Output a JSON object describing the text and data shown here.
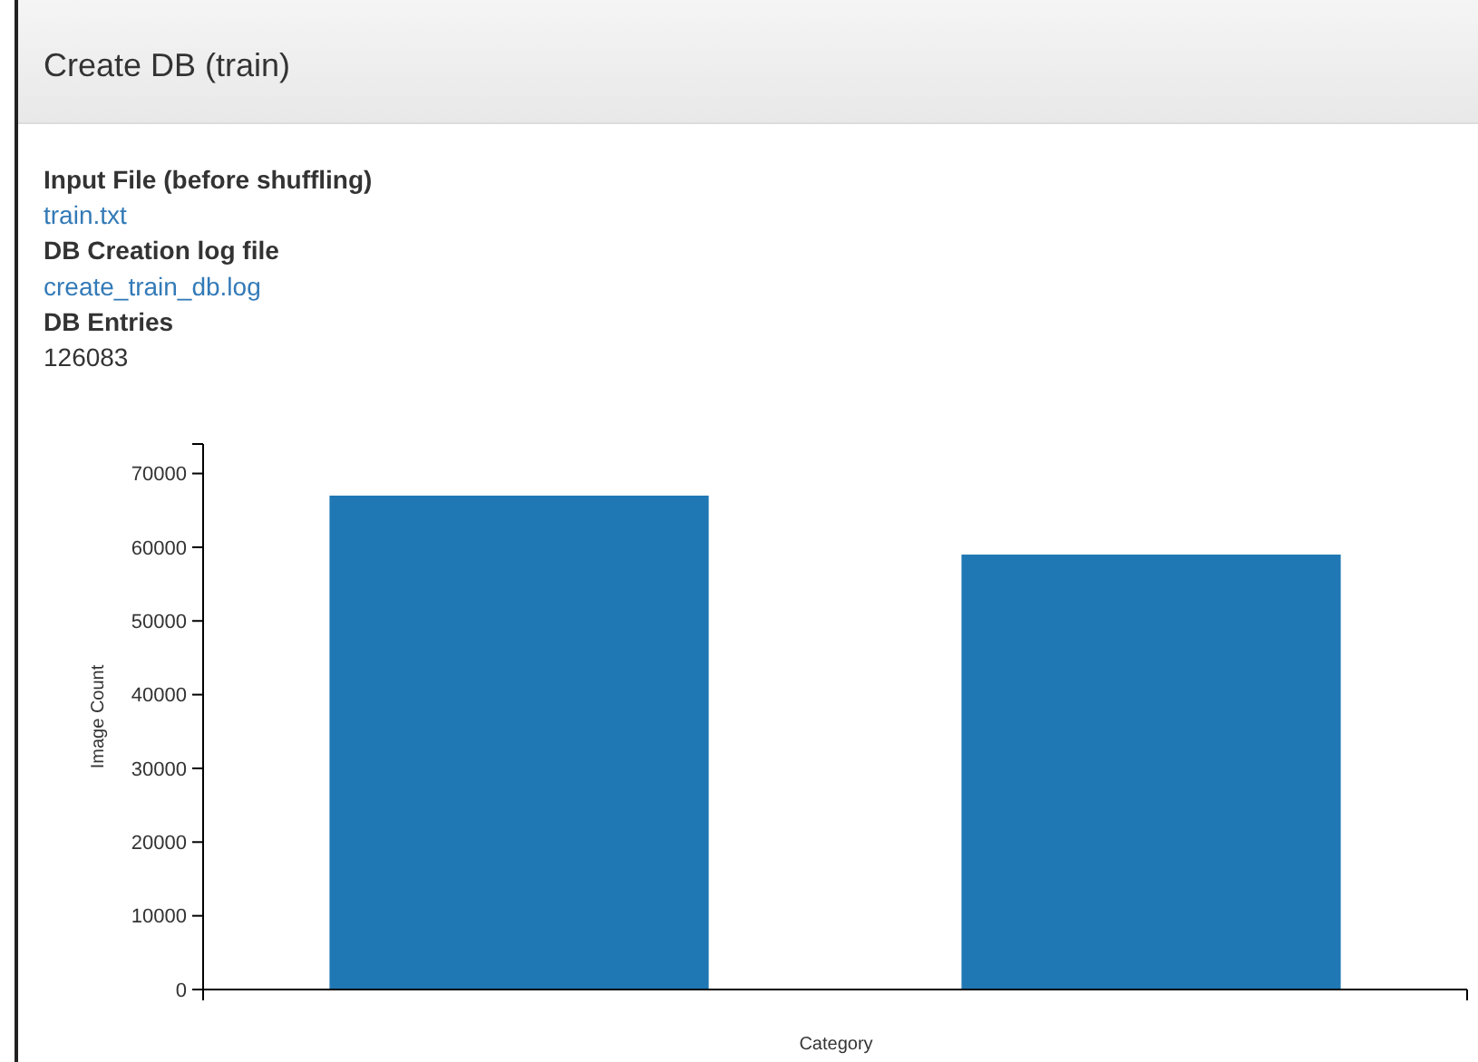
{
  "chart_data": {
    "type": "bar",
    "title": "Create DB (train)",
    "annotations": [
      "Input File (before shuffling)",
      "train.txt",
      "DB Creation log file",
      "create_train_db.log",
      "DB Entries",
      "126083"
    ],
    "xlabel": "Category",
    "ylabel": "Image Count",
    "categories": [
      null,
      null
    ],
    "values": [
      67000,
      59000
    ],
    "color": "#1f77b4",
    "ylim": [
      0,
      74000
    ],
    "yticks": [
      0,
      10000,
      20000,
      30000,
      40000,
      50000,
      60000,
      70000
    ]
  }
}
